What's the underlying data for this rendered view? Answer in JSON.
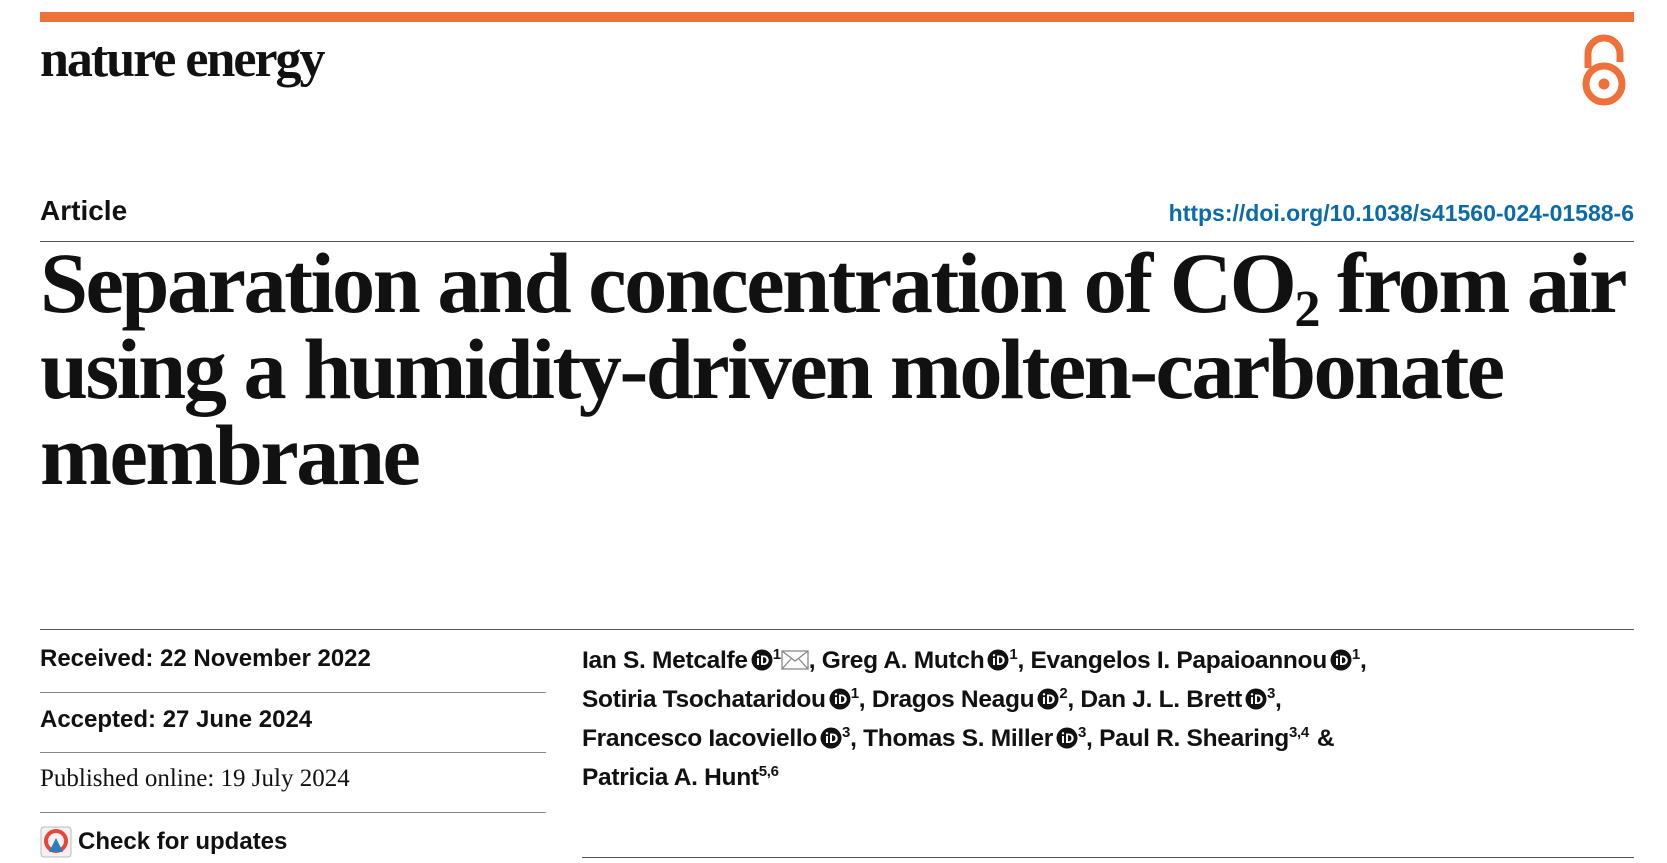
{
  "header": {
    "journal": "nature energy",
    "article_type": "Article",
    "doi": "https://doi.org/10.1038/s41560-024-01588-6"
  },
  "title": {
    "parts": [
      "Separation and concentration of CO",
      "2",
      "from air",
      "using a humidity-driven molten-carbonate",
      "membrane"
    ]
  },
  "dates": {
    "received": "Received: 22 November 2022",
    "accepted": "Accepted: 27 June 2024",
    "published": "Published online: 19 July 2024"
  },
  "updates": "Check for updates",
  "author_lines": [
    [
      {
        "name": "Ian S. Metcalfe",
        "orcid": true,
        "affiliations": "1",
        "email": true,
        "separator": ","
      },
      {
        "name": "Greg A. Mutch",
        "orcid": true,
        "affiliations": "1",
        "separator": ","
      },
      {
        "name": "Evangelos I. Papaioannou",
        "orcid": true,
        "affiliations": "1",
        "separator": ","
      }
    ],
    [
      {
        "name": "Sotiria Tsochataridou",
        "orcid": true,
        "affiliations": "1",
        "separator": ","
      },
      {
        "name": "Dragos Neagu",
        "orcid": true,
        "affiliations": "2",
        "separator": ","
      },
      {
        "name": "Dan J. L. Brett",
        "orcid": true,
        "affiliations": "3",
        "separator": ","
      }
    ],
    [
      {
        "name": "Francesco Iacoviello",
        "orcid": true,
        "affiliations": "3",
        "separator": ","
      },
      {
        "name": "Thomas S. Miller",
        "orcid": true,
        "affiliations": "3",
        "separator": ","
      },
      {
        "name": "Paul R. Shearing",
        "orcid": false,
        "affiliations": "3,4",
        "separator": "&"
      }
    ],
    [
      {
        "name": "Patricia A. Hunt",
        "orcid": false,
        "affiliations": "5,6"
      }
    ]
  ]
}
